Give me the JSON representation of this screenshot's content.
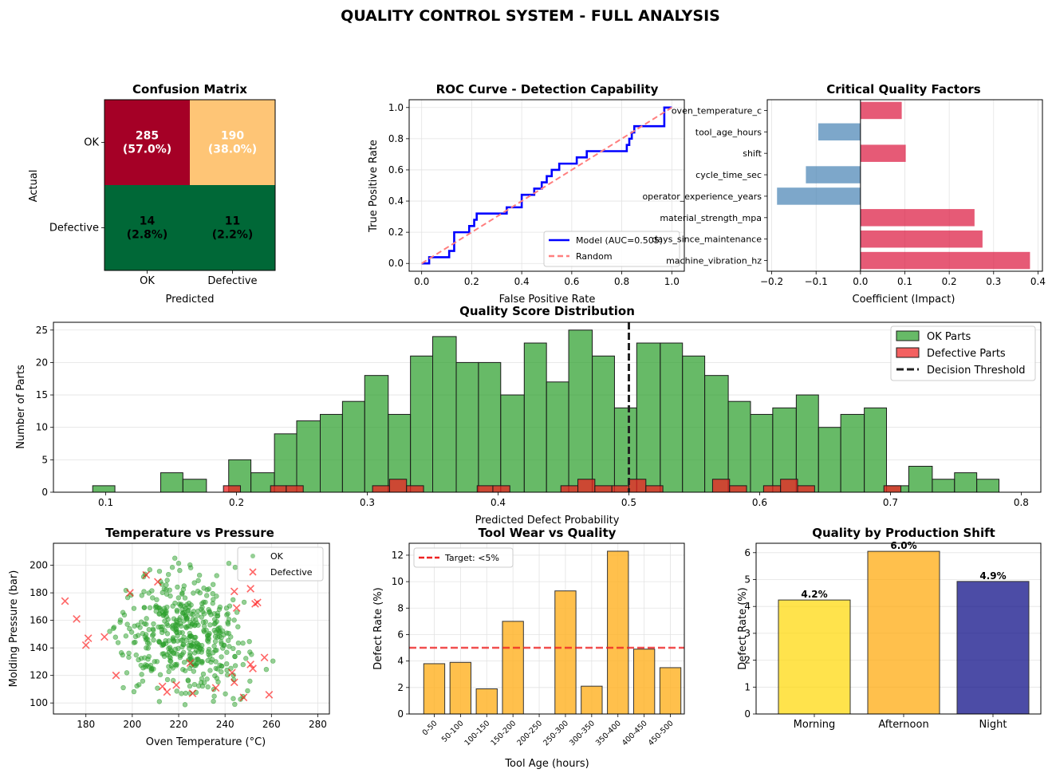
{
  "figure": {
    "suptitle": "QUALITY CONTROL SYSTEM - FULL ANALYSIS"
  },
  "chart_data": [
    {
      "id": "cm",
      "type": "heatmap",
      "title": "Confusion Matrix",
      "xlabel": "Predicted",
      "ylabel": "Actual",
      "x_categories": [
        "OK",
        "Defective"
      ],
      "y_categories": [
        "OK",
        "Defective"
      ],
      "cells": [
        {
          "row": 0,
          "col": 0,
          "count": "285",
          "pct": "(57.0%)",
          "color": "#a50026",
          "text_color": "#ffffff"
        },
        {
          "row": 0,
          "col": 1,
          "count": "190",
          "pct": "(38.0%)",
          "color": "#fec576",
          "text_color": "#ffffff"
        },
        {
          "row": 1,
          "col": 0,
          "count": "14",
          "pct": "(2.8%)",
          "color": "#006837",
          "text_color": "#000000"
        },
        {
          "row": 1,
          "col": 1,
          "count": "11",
          "pct": "(2.2%)",
          "color": "#006837",
          "text_color": "#000000"
        }
      ]
    },
    {
      "id": "roc",
      "type": "line",
      "title": "ROC Curve - Detection Capability",
      "xlabel": "False Positive Rate",
      "ylabel": "True Positive Rate",
      "xlim": [
        -0.05,
        1.05
      ],
      "ylim": [
        -0.05,
        1.05
      ],
      "xticks": [
        "0.0",
        "0.2",
        "0.4",
        "0.6",
        "0.8",
        "1.0"
      ],
      "yticks": [
        "0.0",
        "0.2",
        "0.4",
        "0.6",
        "0.8",
        "1.0"
      ],
      "grid": true,
      "legend_position": "lower-right",
      "series": [
        {
          "name": "Model (AUC=0.505)",
          "color": "#0000ff",
          "x": [
            0,
            0.03,
            0.03,
            0.11,
            0.11,
            0.13,
            0.13,
            0.19,
            0.19,
            0.21,
            0.21,
            0.22,
            0.22,
            0.34,
            0.34,
            0.4,
            0.4,
            0.45,
            0.45,
            0.48,
            0.48,
            0.5,
            0.5,
            0.52,
            0.52,
            0.55,
            0.55,
            0.62,
            0.62,
            0.66,
            0.66,
            0.82,
            0.82,
            0.83,
            0.83,
            0.84,
            0.84,
            0.85,
            0.85,
            0.97,
            0.97,
            1.0
          ],
          "y": [
            0,
            0,
            0.04,
            0.04,
            0.08,
            0.08,
            0.2,
            0.2,
            0.24,
            0.24,
            0.28,
            0.28,
            0.32,
            0.32,
            0.36,
            0.36,
            0.44,
            0.44,
            0.48,
            0.48,
            0.52,
            0.52,
            0.56,
            0.56,
            0.6,
            0.6,
            0.64,
            0.64,
            0.68,
            0.68,
            0.72,
            0.72,
            0.76,
            0.76,
            0.8,
            0.8,
            0.84,
            0.84,
            0.88,
            0.88,
            1.0,
            1.0
          ]
        },
        {
          "name": "Random",
          "color": "#ff7f7f",
          "dashed": true,
          "x": [
            0,
            1
          ],
          "y": [
            0,
            1
          ]
        }
      ]
    },
    {
      "id": "coef",
      "type": "bar",
      "orientation": "horizontal",
      "title": "Critical Quality Factors",
      "xlabel": "Coefficient (Impact)",
      "xlim": [
        -0.21,
        0.41
      ],
      "xticks": [
        "−0.2",
        "−0.1",
        "0.0",
        "0.1",
        "0.2",
        "0.3",
        "0.4"
      ],
      "grid": true,
      "positive_color": "#dc143c",
      "negative_color": "#4682b4",
      "categories": [
        "oven_temperature_c",
        "tool_age_hours",
        "shift",
        "cycle_time_sec",
        "operator_experience_years",
        "material_strength_mpa",
        "days_since_maintenance",
        "machine_vibration_hz"
      ],
      "values": [
        0.093,
        -0.095,
        0.102,
        -0.123,
        -0.188,
        0.257,
        0.275,
        0.382
      ]
    },
    {
      "id": "hist",
      "type": "bar",
      "title": "Quality Score Distribution",
      "xlabel": "Predicted Defect Probability",
      "ylabel": "Number of Parts",
      "xlim": [
        0.06,
        0.815
      ],
      "ylim": [
        0,
        26.2
      ],
      "xticks": [
        "0.1",
        "0.2",
        "0.3",
        "0.4",
        "0.5",
        "0.6",
        "0.7",
        "0.8"
      ],
      "yticks": [
        "0",
        "5",
        "10",
        "15",
        "20",
        "25"
      ],
      "grid": true,
      "legend_position": "upper-right",
      "threshold": 0.5,
      "threshold_label": "Decision Threshold",
      "series": [
        {
          "name": "OK Parts",
          "color": "#2ca02c",
          "bins": [
            [
              0.09,
              0.107,
              1
            ],
            [
              0.142,
              0.159,
              3
            ],
            [
              0.159,
              0.177,
              2
            ],
            [
              0.194,
              0.211,
              5
            ],
            [
              0.211,
              0.229,
              3
            ],
            [
              0.229,
              0.246,
              9
            ],
            [
              0.246,
              0.264,
              11
            ],
            [
              0.264,
              0.281,
              12
            ],
            [
              0.281,
              0.298,
              14
            ],
            [
              0.298,
              0.316,
              18
            ],
            [
              0.316,
              0.333,
              12
            ],
            [
              0.333,
              0.35,
              21
            ],
            [
              0.35,
              0.368,
              24
            ],
            [
              0.368,
              0.385,
              20
            ],
            [
              0.385,
              0.402,
              20
            ],
            [
              0.402,
              0.42,
              15
            ],
            [
              0.42,
              0.437,
              23
            ],
            [
              0.437,
              0.454,
              17
            ],
            [
              0.454,
              0.472,
              25
            ],
            [
              0.472,
              0.489,
              21
            ],
            [
              0.489,
              0.506,
              13
            ],
            [
              0.506,
              0.524,
              23
            ],
            [
              0.524,
              0.541,
              23
            ],
            [
              0.541,
              0.558,
              21
            ],
            [
              0.558,
              0.576,
              18
            ],
            [
              0.576,
              0.593,
              14
            ],
            [
              0.593,
              0.61,
              12
            ],
            [
              0.61,
              0.628,
              13
            ],
            [
              0.628,
              0.645,
              15
            ],
            [
              0.645,
              0.662,
              10
            ],
            [
              0.662,
              0.68,
              12
            ],
            [
              0.68,
              0.697,
              13
            ],
            [
              0.697,
              0.714,
              1
            ],
            [
              0.714,
              0.732,
              4
            ],
            [
              0.732,
              0.749,
              2
            ],
            [
              0.749,
              0.766,
              3
            ],
            [
              0.766,
              0.783,
              2
            ]
          ]
        },
        {
          "name": "Defective Parts",
          "color": "#ee2222",
          "bins": [
            [
              0.19,
              0.203,
              1
            ],
            [
              0.226,
              0.238,
              1
            ],
            [
              0.238,
              0.251,
              1
            ],
            [
              0.304,
              0.317,
              1
            ],
            [
              0.317,
              0.33,
              2
            ],
            [
              0.33,
              0.343,
              1
            ],
            [
              0.384,
              0.396,
              1
            ],
            [
              0.396,
              0.409,
              1
            ],
            [
              0.448,
              0.461,
              1
            ],
            [
              0.461,
              0.474,
              2
            ],
            [
              0.474,
              0.487,
              1
            ],
            [
              0.487,
              0.5,
              1
            ],
            [
              0.5,
              0.513,
              2
            ],
            [
              0.513,
              0.526,
              1
            ],
            [
              0.564,
              0.577,
              2
            ],
            [
              0.577,
              0.59,
              1
            ],
            [
              0.603,
              0.616,
              1
            ],
            [
              0.616,
              0.629,
              2
            ],
            [
              0.629,
              0.642,
              1
            ],
            [
              0.695,
              0.708,
              1
            ]
          ]
        }
      ]
    },
    {
      "id": "scatter",
      "type": "scatter",
      "title": "Temperature vs Pressure",
      "xlabel": "Oven Temperature (°C)",
      "ylabel": "Molding Pressure (bar)",
      "xlim": [
        166,
        285
      ],
      "ylim": [
        92,
        216
      ],
      "xticks": [
        "180",
        "200",
        "220",
        "240",
        "260",
        "280"
      ],
      "yticks": [
        "100",
        "120",
        "140",
        "160",
        "180",
        "200"
      ],
      "grid": true,
      "legend_position": "upper-right",
      "series": [
        {
          "name": "OK",
          "color": "#2ca02c",
          "n": 480,
          "x_mean": 222,
          "x_sd": 14,
          "y_mean": 150,
          "y_sd": 20
        },
        {
          "name": "Defective",
          "color": "#ff0000",
          "points": [
            [
              171,
              174
            ],
            [
              176,
              161
            ],
            [
              180,
              142
            ],
            [
              181,
              147
            ],
            [
              188,
              148
            ],
            [
              193,
              120
            ],
            [
              199,
              180
            ],
            [
              206,
              193
            ],
            [
              211,
              188
            ],
            [
              213,
              112
            ],
            [
              215,
              108
            ],
            [
              219,
              113
            ],
            [
              225,
              129
            ],
            [
              226,
              107
            ],
            [
              236,
              111
            ],
            [
              243,
              122
            ],
            [
              244,
              181
            ],
            [
              244,
              115
            ],
            [
              245,
              169
            ],
            [
              248,
              104
            ],
            [
              251,
              183
            ],
            [
              251,
              128
            ],
            [
              252,
              125
            ],
            [
              253,
              172
            ],
            [
              254,
              173
            ],
            [
              257,
              133
            ],
            [
              259,
              106
            ]
          ]
        }
      ]
    },
    {
      "id": "tool",
      "type": "bar",
      "title": "Tool Wear vs Quality",
      "xlabel": "Tool Age (hours)",
      "ylabel": "Defect Rate (%)",
      "ylim": [
        0,
        12.9
      ],
      "yticks": [
        "0",
        "2",
        "4",
        "6",
        "8",
        "10",
        "12"
      ],
      "grid": true,
      "color": "#ffb01f",
      "target": 5,
      "target_label": "Target: <5%",
      "legend_position": "upper-left",
      "categories": [
        "0-50",
        "50-100",
        "100-150",
        "150-200",
        "200-250",
        "250-300",
        "300-350",
        "350-400",
        "400-450",
        "450-500"
      ],
      "values": [
        3.8,
        3.9,
        1.9,
        7.0,
        0,
        9.3,
        2.1,
        12.3,
        4.9,
        3.5
      ]
    },
    {
      "id": "shift",
      "type": "bar",
      "title": "Quality by Production Shift",
      "ylabel": "Defect Rate (%)",
      "ylim": [
        0,
        6.35
      ],
      "yticks": [
        "0",
        "1",
        "2",
        "3",
        "4",
        "5",
        "6"
      ],
      "grid": true,
      "categories": [
        "Morning",
        "Afternoon",
        "Night"
      ],
      "values": [
        4.24,
        6.05,
        4.93
      ],
      "labels": [
        "4.2%",
        "6.0%",
        "4.9%"
      ],
      "colors": [
        "#ffd700",
        "#ffa500",
        "#000080"
      ]
    }
  ]
}
